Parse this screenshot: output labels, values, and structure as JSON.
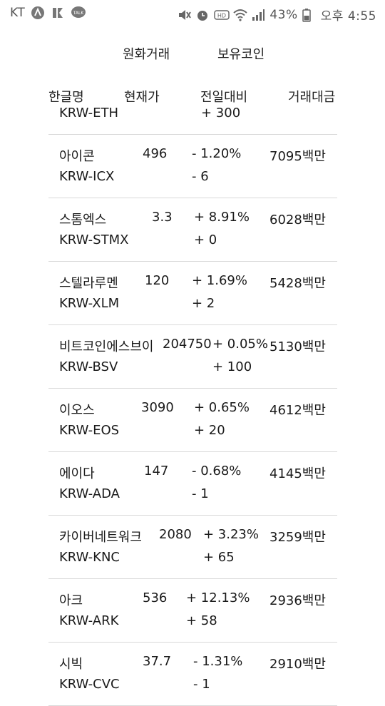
{
  "status_bar": {
    "carrier": "KT",
    "battery": "43%",
    "time": "오후 4:55"
  },
  "tabs": [
    {
      "label": "원화거래"
    },
    {
      "label": "보유코인"
    }
  ],
  "header": {
    "name": "한글명",
    "price": "현재가",
    "change": "전일대비",
    "volume": "거래대금"
  },
  "first_row": {
    "code": "KRW-ETH",
    "diff": "+ 300"
  },
  "rows": [
    {
      "name": "아이콘",
      "code": "KRW-ICX",
      "price": "496",
      "rate": "- 1.20%",
      "diff": "- 6",
      "volume": "7095백만"
    },
    {
      "name": "스톰엑스",
      "code": "KRW-STMX",
      "price": "3.3",
      "rate": "+ 8.91%",
      "diff": "+ 0",
      "volume": "6028백만"
    },
    {
      "name": "스텔라루멘",
      "code": "KRW-XLM",
      "price": "120",
      "rate": "+ 1.69%",
      "diff": "+ 2",
      "volume": "5428백만"
    },
    {
      "name": "비트코인에스브이",
      "code": "KRW-BSV",
      "price": "204750",
      "rate": "+ 0.05%",
      "diff": "+ 100",
      "volume": "5130백만"
    },
    {
      "name": "이오스",
      "code": "KRW-EOS",
      "price": "3090",
      "rate": "+ 0.65%",
      "diff": "+ 20",
      "volume": "4612백만"
    },
    {
      "name": "에이다",
      "code": "KRW-ADA",
      "price": "147",
      "rate": "- 0.68%",
      "diff": "- 1",
      "volume": "4145백만"
    },
    {
      "name": "카이버네트워크",
      "code": "KRW-KNC",
      "price": "2080",
      "rate": "+ 3.23%",
      "diff": "+ 65",
      "volume": "3259백만"
    },
    {
      "name": "아크",
      "code": "KRW-ARK",
      "price": "536",
      "rate": "+ 12.13%",
      "diff": "+ 58",
      "volume": "2936백만"
    },
    {
      "name": "시빅",
      "code": "KRW-CVC",
      "price": "37.7",
      "rate": "- 1.31%",
      "diff": "- 1",
      "volume": "2910백만"
    }
  ]
}
